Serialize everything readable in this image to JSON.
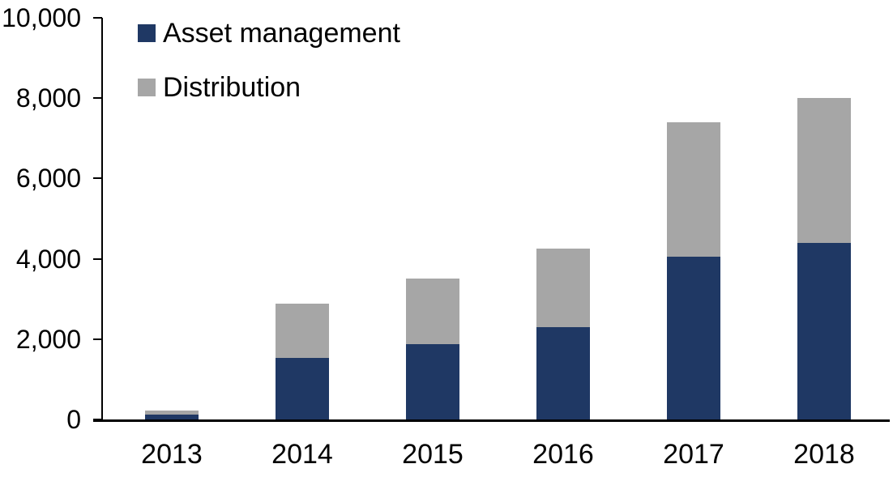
{
  "chart_data": {
    "type": "bar",
    "stacked": true,
    "title": "",
    "xlabel": "",
    "ylabel": "",
    "categories": [
      "2013",
      "2014",
      "2015",
      "2016",
      "2017",
      "2018"
    ],
    "series": [
      {
        "name": "Asset management",
        "color": "#1F3864",
        "values": [
          120,
          1530,
          1870,
          2300,
          4050,
          4400
        ]
      },
      {
        "name": "Distribution",
        "color": "#A6A6A6",
        "values": [
          100,
          1350,
          1630,
          1950,
          3350,
          3600
        ]
      }
    ],
    "totals": [
      220,
      2880,
      3500,
      4250,
      7400,
      8000
    ],
    "ylim": [
      0,
      10000
    ],
    "yticks": [
      0,
      2000,
      4000,
      6000,
      8000,
      10000
    ],
    "ytick_labels": [
      "0",
      "2,000",
      "4,000",
      "6,000",
      "8,000",
      "10,000"
    ],
    "grid": false,
    "legend_position": "top-left"
  },
  "colors": {
    "axis": "#000000",
    "text": "#000000",
    "background": "#ffffff"
  }
}
